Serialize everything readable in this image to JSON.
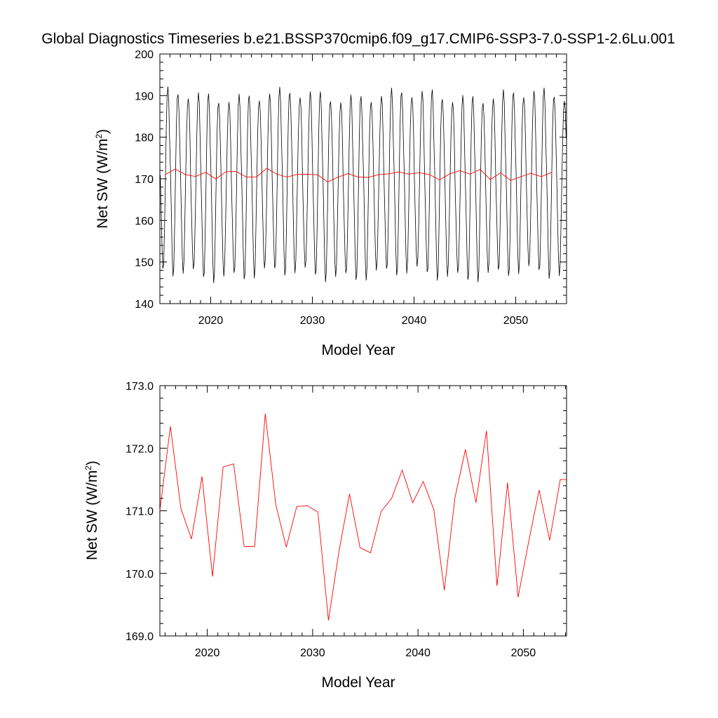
{
  "title": "Global Diagnostics Timeseries b.e21.BSSP370cmip6.f09_g17.CMIP6-SSP3-7.0-SSP1-2.6Lu.001",
  "colors": {
    "monthly": "#000000",
    "annual": "#ff0000"
  },
  "chart_data": [
    {
      "type": "line",
      "xlabel": "Model Year",
      "ylabel_main": "Net SW (W/m",
      "ylabel_sup": "2",
      "ylabel_close": ")",
      "xlim": [
        2015,
        2055
      ],
      "ylim": [
        140,
        200
      ],
      "x_ticks": [
        2020,
        2030,
        2040,
        2050
      ],
      "y_ticks": [
        140,
        150,
        160,
        170,
        180,
        190,
        200
      ],
      "monthly_series": {
        "start_year": 2015,
        "seasonal_cycle": [
          170,
          161,
          152,
          147,
          149,
          158,
          170,
          181,
          188,
          190,
          187,
          179
        ],
        "note_values": "monthly cycle approx 145-191"
      },
      "annual_series": {
        "x": [
          2015.5,
          2016.5,
          2017.5,
          2018.5,
          2019.5,
          2020.5,
          2021.5,
          2022.5,
          2023.5,
          2024.5,
          2025.5,
          2026.5,
          2027.5,
          2028.5,
          2029.5,
          2030.5,
          2031.5,
          2032.5,
          2033.5,
          2034.5,
          2035.5,
          2036.5,
          2037.5,
          2038.5,
          2039.5,
          2040.5,
          2041.5,
          2042.5,
          2043.5,
          2044.5,
          2045.5,
          2046.5,
          2047.5,
          2048.5,
          2049.5,
          2050.5,
          2051.5,
          2052.5,
          2053.5
        ],
        "y": [
          171.0,
          172.35,
          171.03,
          170.55,
          171.55,
          169.95,
          171.7,
          171.75,
          170.43,
          170.43,
          172.55,
          171.1,
          170.42,
          171.07,
          171.08,
          170.98,
          169.25,
          170.35,
          171.27,
          170.41,
          170.33,
          170.99,
          171.2,
          171.65,
          171.13,
          171.47,
          171.02,
          169.73,
          171.2,
          171.98,
          171.13,
          172.28,
          169.8,
          171.45,
          169.62,
          170.5,
          171.33,
          170.53,
          171.5
        ]
      }
    },
    {
      "type": "line",
      "xlabel": "Model Year",
      "ylabel_main": "Net SW (W/m",
      "ylabel_sup": "2",
      "ylabel_close": ")",
      "xlim": [
        2015.5,
        2054.1
      ],
      "ylim": [
        169.0,
        173.0
      ],
      "x_ticks": [
        2020,
        2030,
        2040,
        2050
      ],
      "y_ticks": [
        169.0,
        170.0,
        171.0,
        172.0,
        173.0
      ],
      "y_tick_labels": [
        "169.0",
        "170.0",
        "171.0",
        "172.0",
        "173.0"
      ],
      "annual_series": {
        "x": [
          2015.5,
          2016.5,
          2017.5,
          2018.5,
          2019.5,
          2020.5,
          2021.5,
          2022.5,
          2023.5,
          2024.5,
          2025.5,
          2026.5,
          2027.5,
          2028.5,
          2029.5,
          2030.5,
          2031.5,
          2032.5,
          2033.5,
          2034.5,
          2035.5,
          2036.5,
          2037.5,
          2038.5,
          2039.5,
          2040.5,
          2041.5,
          2042.5,
          2043.5,
          2044.5,
          2045.5,
          2046.5,
          2047.5,
          2048.5,
          2049.5,
          2050.5,
          2051.5,
          2052.5,
          2053.5,
          2054.1
        ],
        "y": [
          171.0,
          172.35,
          171.03,
          170.55,
          171.55,
          169.95,
          171.7,
          171.75,
          170.43,
          170.43,
          172.55,
          171.1,
          170.42,
          171.07,
          171.08,
          170.98,
          169.25,
          170.35,
          171.27,
          170.41,
          170.33,
          170.99,
          171.2,
          171.65,
          171.13,
          171.47,
          171.02,
          169.73,
          171.2,
          171.98,
          171.13,
          172.28,
          169.8,
          171.45,
          169.62,
          170.5,
          171.33,
          170.53,
          171.5,
          171.5
        ]
      }
    }
  ]
}
